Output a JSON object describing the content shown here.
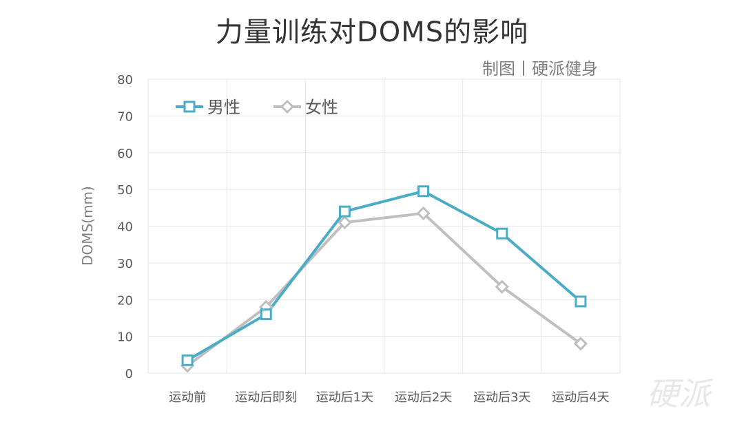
{
  "title": "力量训练对DOMS的影响",
  "credit": "制图丨硬派健身",
  "chart_data": {
    "type": "line",
    "categories": [
      "运动前",
      "运动后即刻",
      "运动后1天",
      "运动后2天",
      "运动后3天",
      "运动后4天"
    ],
    "series": [
      {
        "name": "男性",
        "values": [
          3.5,
          16,
          44,
          49.5,
          38,
          19.5
        ],
        "color": "#4bacc6",
        "marker": "square"
      },
      {
        "name": "女性",
        "values": [
          2,
          18,
          41,
          43.5,
          23.5,
          8
        ],
        "color": "#bfbfbf",
        "marker": "diamond"
      }
    ],
    "ylabel": "DOMS(mm)",
    "xlabel": "",
    "ylim": [
      0,
      80
    ],
    "yticks": [
      0,
      10,
      20,
      30,
      40,
      50,
      60,
      70,
      80
    ],
    "grid": true,
    "legend_position": "top-left"
  },
  "watermark": {
    "text": "硬派",
    "icon": "hardcore-fitness-logo",
    "color": "#e8e8e8"
  }
}
